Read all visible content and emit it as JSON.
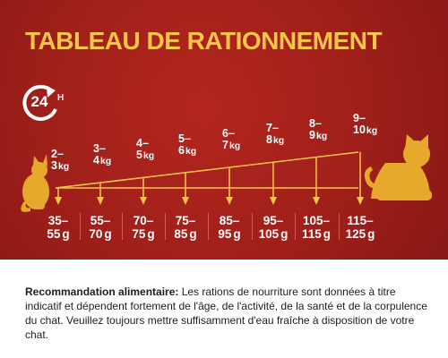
{
  "title": "TABLEAU DE RATIONNEMENT",
  "badge": {
    "number": "24",
    "unit": "H"
  },
  "weights": [
    {
      "range": "2–",
      "value": "3",
      "unit": "kg",
      "portion_range": "35–",
      "portion_value": "55",
      "portion_unit": "g"
    },
    {
      "range": "3–",
      "value": "4",
      "unit": "kg",
      "portion_range": "55–",
      "portion_value": "70",
      "portion_unit": "g"
    },
    {
      "range": "4–",
      "value": "5",
      "unit": "kg",
      "portion_range": "70–",
      "portion_value": "75",
      "portion_unit": "g"
    },
    {
      "range": "5–",
      "value": "6",
      "unit": "kg",
      "portion_range": "75–",
      "portion_value": "85",
      "portion_unit": "g"
    },
    {
      "range": "6–",
      "value": "7",
      "unit": "kg",
      "portion_range": "85–",
      "portion_value": "95",
      "portion_unit": "g"
    },
    {
      "range": "7–",
      "value": "8",
      "unit": "kg",
      "portion_range": "95–",
      "portion_value": "105",
      "portion_unit": "g"
    },
    {
      "range": "8–",
      "value": "9",
      "unit": "kg",
      "portion_range": "105–",
      "portion_value": "115",
      "portion_unit": "g"
    },
    {
      "range": "9–",
      "value": "10",
      "unit": "kg",
      "portion_range": "115–",
      "portion_value": "125",
      "portion_unit": "g"
    }
  ],
  "recommendation": {
    "label": "Recommandation alimentaire:",
    "text": " Les rations de nourriture sont données à titre indicatif et dépendent fortement de l'âge, de l'activité, de la santé et de la corpulence du chat. Veuillez toujours mettre suffisamment d'eau fraîche à disposition de votre chat."
  },
  "colors": {
    "background": "#a01f1a",
    "accent": "#f5c64a",
    "cat": "#e6a92c",
    "text": "#ffffff"
  },
  "icons": {
    "badge": "24h-clock-icon",
    "small_cat": "sitting-cat-icon",
    "large_cat": "sitting-cat-icon"
  }
}
